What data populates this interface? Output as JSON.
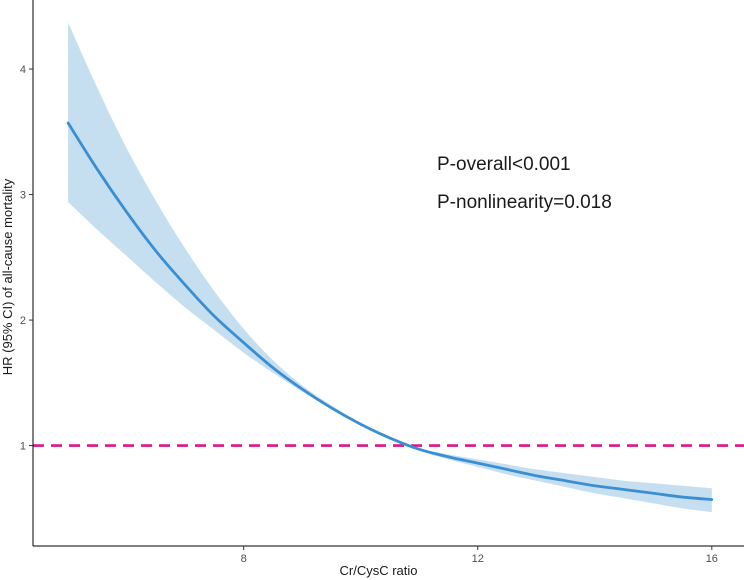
{
  "chart_data": {
    "type": "line",
    "title": "",
    "xlabel": "Cr/CysC ratio",
    "ylabel": "HR (95% CI) of all-cause mortality",
    "xlim": [
      4.4,
      16.55
    ],
    "ylim": [
      0.2,
      4.55
    ],
    "x_ticks": [
      8,
      12,
      16
    ],
    "x_tick_labels": [
      "8",
      "12",
      "16"
    ],
    "y_ticks": [
      1,
      2,
      3,
      4
    ],
    "y_tick_labels": [
      "1",
      "2",
      "3",
      "4"
    ],
    "grid": false,
    "reference_line": {
      "y": 1,
      "color": "#e0138c",
      "style": "dashed"
    },
    "series": [
      {
        "name": "HR",
        "color": "#3a8fd4",
        "band_color": "#c6dff0",
        "x": [
          5.0,
          5.5,
          6.0,
          6.5,
          7.0,
          7.5,
          8.0,
          8.5,
          9.0,
          9.5,
          10.0,
          10.5,
          11.0,
          11.5,
          12.0,
          12.5,
          13.0,
          13.5,
          14.0,
          14.5,
          15.0,
          15.5,
          16.0
        ],
        "y": [
          3.57,
          3.2,
          2.86,
          2.55,
          2.28,
          2.03,
          1.82,
          1.62,
          1.45,
          1.3,
          1.17,
          1.06,
          0.97,
          0.91,
          0.86,
          0.81,
          0.76,
          0.72,
          0.68,
          0.65,
          0.62,
          0.59,
          0.57
        ],
        "lower": [
          2.94,
          2.72,
          2.51,
          2.3,
          2.1,
          1.92,
          1.74,
          1.58,
          1.43,
          1.29,
          1.16,
          1.05,
          0.96,
          0.89,
          0.83,
          0.77,
          0.72,
          0.67,
          0.62,
          0.58,
          0.54,
          0.5,
          0.47
        ],
        "upper": [
          4.37,
          3.85,
          3.37,
          2.95,
          2.57,
          2.23,
          1.93,
          1.68,
          1.48,
          1.32,
          1.18,
          1.07,
          0.98,
          0.93,
          0.89,
          0.85,
          0.81,
          0.78,
          0.75,
          0.72,
          0.7,
          0.68,
          0.66
        ]
      }
    ],
    "annotations": [
      "P-overall<0.001",
      "P-nonlinearity=0.018"
    ]
  }
}
